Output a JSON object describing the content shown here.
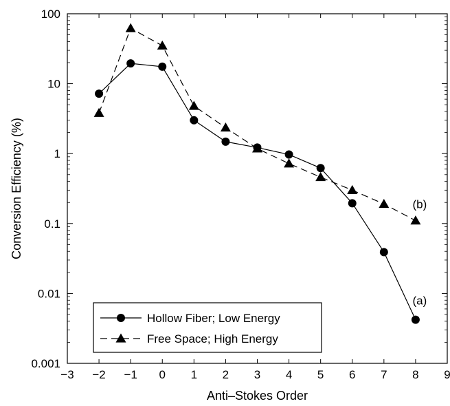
{
  "chart_data": {
    "type": "line",
    "xlabel": "Anti–Stokes Order",
    "ylabel": "Conversion Efficiency (%)",
    "xlim": [
      -3,
      9
    ],
    "ylim": [
      0.001,
      100
    ],
    "yscale": "log",
    "grid": false,
    "legend_position": "bottom-left",
    "xticks": [
      -3,
      -2,
      -1,
      0,
      1,
      2,
      3,
      4,
      5,
      6,
      7,
      8,
      9
    ],
    "xtick_labels": [
      "−3",
      "−2",
      "−1",
      "0",
      "1",
      "2",
      "3",
      "4",
      "5",
      "6",
      "7",
      "8",
      "9"
    ],
    "yticks": [
      0.001,
      0.01,
      0.1,
      1,
      10,
      100
    ],
    "ytick_labels": [
      "0.001",
      "0.01",
      "0.1",
      "1",
      "10",
      "100"
    ],
    "series": [
      {
        "name": "Hollow Fiber; Low Energy",
        "marker": "circle",
        "linestyle": "solid",
        "color": "#000000",
        "x": [
          -2,
          -1,
          0,
          1,
          2,
          3,
          4,
          5,
          6,
          7,
          8
        ],
        "values": [
          7.2,
          19.5,
          17.5,
          3.0,
          1.48,
          1.22,
          0.97,
          0.62,
          0.195,
          0.039,
          0.0042
        ],
        "annotation": "(a)"
      },
      {
        "name": "Free Space; High Energy",
        "marker": "triangle",
        "linestyle": "dashed",
        "color": "#000000",
        "x": [
          -2,
          -1,
          0,
          1,
          2,
          3,
          4,
          5,
          6,
          7,
          8
        ],
        "values": [
          3.8,
          62,
          35,
          4.8,
          2.35,
          1.18,
          0.72,
          0.46,
          0.3,
          0.19,
          0.11
        ],
        "annotation": "(b)"
      }
    ]
  }
}
